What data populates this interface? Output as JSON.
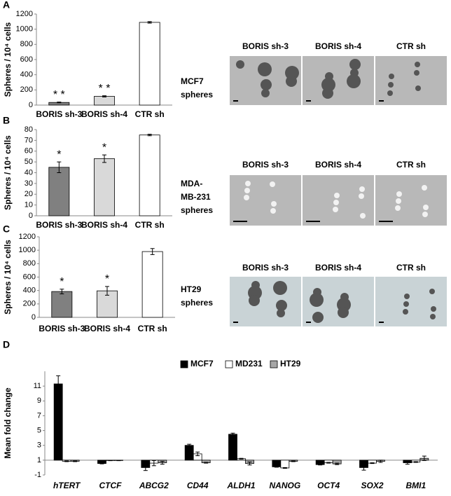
{
  "panel_letters": [
    "A",
    "B",
    "C",
    "D"
  ],
  "image_panels": [
    {
      "cell_label": [
        "MCF7",
        "spheres"
      ],
      "image_labels": [
        "BORIS sh-3",
        "BORIS sh-4",
        "CTR sh"
      ]
    },
    {
      "cell_label": [
        "MDA-",
        "MB-231",
        "spheres"
      ],
      "image_labels": [
        "BORIS sh-3",
        "BORIS sh-4",
        "CTR sh"
      ]
    },
    {
      "cell_label": [
        "HT29",
        "spheres"
      ],
      "image_labels": [
        "BORIS sh-3",
        "BORIS sh-4",
        "CTR sh"
      ]
    }
  ],
  "chart_data": [
    {
      "type": "bar",
      "ylabel": "Spheres / 10⁴ cells",
      "categories": [
        "BORIS sh-3",
        "BORIS sh-4",
        "CTR sh"
      ],
      "values": [
        35,
        115,
        1090
      ],
      "errors": [
        5,
        8,
        10
      ],
      "colors": [
        "#808080",
        "#d9d9d9",
        "#ffffff"
      ],
      "annotations": [
        "* *",
        "* *",
        null
      ],
      "ylim": [
        0,
        1200
      ],
      "yticks": [
        0,
        200,
        400,
        600,
        800,
        1000,
        1200
      ]
    },
    {
      "type": "bar",
      "ylabel": "Spheres / 10⁴ cells",
      "categories": [
        "BORIS sh-3",
        "BORIS sh-4",
        "CTR sh"
      ],
      "values": [
        45,
        53,
        75
      ],
      "errors": [
        5,
        3.5,
        0.7
      ],
      "colors": [
        "#808080",
        "#d9d9d9",
        "#ffffff"
      ],
      "annotations": [
        "*",
        "*",
        null
      ],
      "ylim": [
        0,
        80
      ],
      "yticks": [
        0,
        10,
        20,
        30,
        40,
        50,
        60,
        70,
        80
      ]
    },
    {
      "type": "bar",
      "ylabel": "Spheres / 10⁴ cells",
      "categories": [
        "BORIS sh-3",
        "BORIS sh-4",
        "CTR sh"
      ],
      "values": [
        385,
        395,
        980
      ],
      "errors": [
        35,
        65,
        45
      ],
      "colors": [
        "#808080",
        "#d9d9d9",
        "#ffffff"
      ],
      "annotations": [
        "*",
        "*",
        null
      ],
      "ylim": [
        0,
        1200
      ],
      "yticks": [
        0,
        200,
        400,
        600,
        800,
        1000,
        1200
      ]
    },
    {
      "type": "grouped_bar",
      "ylabel": "Mean fold change",
      "categories": [
        "hTERT",
        "CTCF",
        "ABCG2",
        "CD44",
        "ALDH1",
        "NANOG",
        "OCT4",
        "SOX2",
        "BMI1"
      ],
      "series": [
        {
          "name": "MCF7",
          "color": "#000000",
          "values": [
            11.3,
            0.55,
            0.0,
            3.0,
            4.5,
            0.1,
            0.4,
            0.0,
            0.65
          ],
          "errors": [
            1.1,
            0.05,
            0.4,
            0.15,
            0.15,
            0.05,
            0.05,
            0.35,
            0.2
          ]
        },
        {
          "name": "MD231",
          "color": "#ffffff",
          "values": [
            0.85,
            0.95,
            0.6,
            1.85,
            1.2,
            -0.05,
            0.65,
            0.6,
            0.75
          ],
          "errors": [
            0.05,
            0.02,
            0.35,
            0.25,
            0.05,
            0.05,
            0.05,
            0.05,
            0.05
          ]
        },
        {
          "name": "HT29",
          "color": "#a6a6a6",
          "values": [
            0.85,
            0.95,
            0.65,
            0.65,
            0.55,
            0.85,
            0.5,
            0.85,
            1.25
          ],
          "errors": [
            0.05,
            0.02,
            0.2,
            0.05,
            0.2,
            0.05,
            0.1,
            0.15,
            0.3
          ]
        }
      ],
      "baseline": 1,
      "legend": "top",
      "ylim": [
        -1,
        13
      ],
      "yticks": [
        -1,
        1,
        3,
        5,
        7,
        9,
        11
      ]
    }
  ]
}
